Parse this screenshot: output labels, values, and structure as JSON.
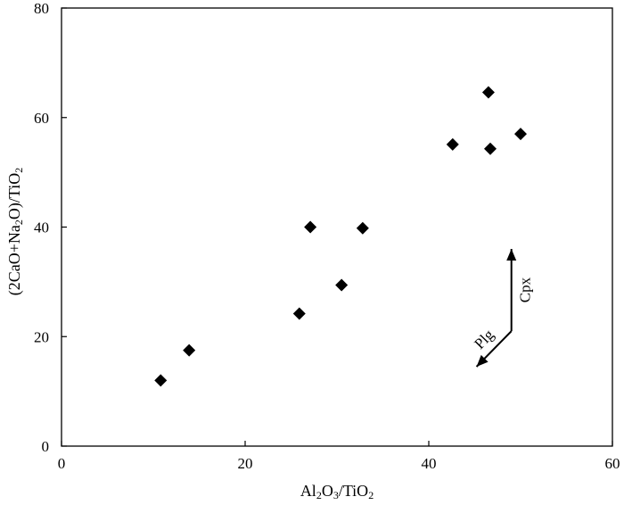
{
  "chart_data": {
    "type": "scatter",
    "title": "",
    "xlabel": {
      "parts": [
        {
          "t": "Al"
        },
        {
          "t": "2",
          "sub": true
        },
        {
          "t": "O"
        },
        {
          "t": "3",
          "sub": true
        },
        {
          "t": "/TiO"
        },
        {
          "t": "2",
          "sub": true
        }
      ]
    },
    "ylabel": {
      "parts": [
        {
          "t": "(2CaO+Na"
        },
        {
          "t": "2",
          "sub": true
        },
        {
          "t": "O)/TiO"
        },
        {
          "t": "2",
          "sub": true
        }
      ]
    },
    "xlim": [
      0,
      60
    ],
    "ylim": [
      0,
      80
    ],
    "xticks": [
      0,
      20,
      40,
      60
    ],
    "yticks": [
      0,
      20,
      40,
      60,
      80
    ],
    "grid": false,
    "legend": "none",
    "marker": "diamond",
    "marker_color": "#000000",
    "points": [
      {
        "x": 10.8,
        "y": 12.0
      },
      {
        "x": 13.9,
        "y": 17.5
      },
      {
        "x": 25.9,
        "y": 24.2
      },
      {
        "x": 27.1,
        "y": 40.0
      },
      {
        "x": 30.5,
        "y": 29.4
      },
      {
        "x": 32.8,
        "y": 39.8
      },
      {
        "x": 42.6,
        "y": 55.1
      },
      {
        "x": 46.5,
        "y": 64.6
      },
      {
        "x": 46.7,
        "y": 54.3
      },
      {
        "x": 50.0,
        "y": 57.0
      }
    ],
    "annotations": [
      {
        "label": "Plg",
        "from": [
          49.0,
          21.0
        ],
        "to": [
          45.2,
          14.5
        ]
      },
      {
        "label": "Cpx",
        "from": [
          49.0,
          21.0
        ],
        "to": [
          49.0,
          36.0
        ]
      }
    ]
  }
}
